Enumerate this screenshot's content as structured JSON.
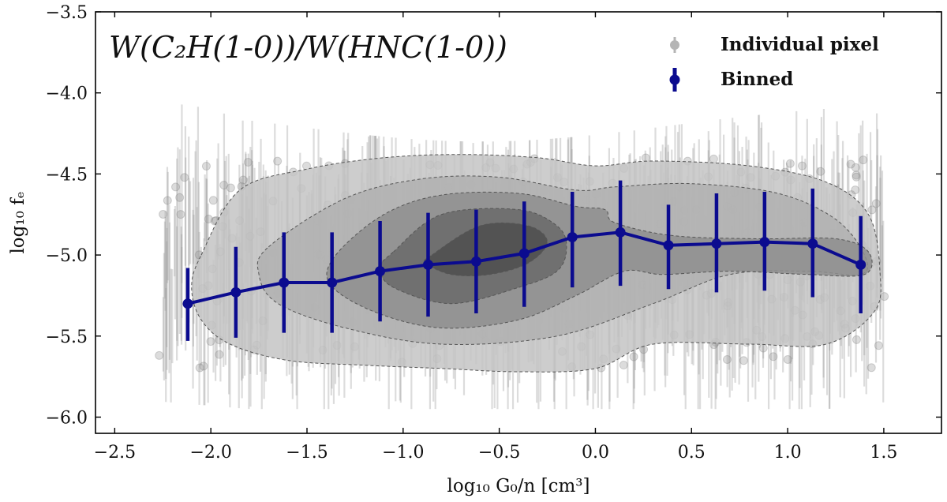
{
  "chart_data": {
    "type": "scatter",
    "title": "W(C₂H(1-0))/W(HNC(1-0))",
    "xlabel": "log₁₀ G₀/n [cm³]",
    "ylabel": "log₁₀ fₑ",
    "xlim": [
      -2.6,
      1.8
    ],
    "ylim": [
      -6.1,
      -3.5
    ],
    "xticks": [
      -2.5,
      -2.0,
      -1.5,
      -1.0,
      -0.5,
      0.0,
      0.5,
      1.0,
      1.5
    ],
    "yticks": [
      -6.0,
      -5.5,
      -5.0,
      -4.5,
      -4.0,
      -3.5
    ],
    "xtick_labels": [
      "−2.5",
      "−2.0",
      "−1.5",
      "−1.0",
      "−0.5",
      "0.0",
      "0.5",
      "1.0",
      "1.5"
    ],
    "ytick_labels": [
      "−6.0",
      "−5.5",
      "−5.0",
      "−4.5",
      "−4.0",
      "−3.5"
    ],
    "legend": {
      "position": "top-right",
      "entries": [
        "Individual pixel",
        "Binned"
      ]
    },
    "series": [
      {
        "name": "Binned",
        "color": "#0b0b8f",
        "x": [
          -2.12,
          -1.87,
          -1.62,
          -1.37,
          -1.12,
          -0.87,
          -0.62,
          -0.37,
          -0.12,
          0.13,
          0.38,
          0.63,
          0.88,
          1.13,
          1.38
        ],
        "y": [
          -5.3,
          -5.23,
          -5.17,
          -5.17,
          -5.1,
          -5.06,
          -5.04,
          -4.99,
          -4.89,
          -4.86,
          -4.94,
          -4.93,
          -4.92,
          -4.93,
          -5.06
        ],
        "y_low": [
          -5.53,
          -5.51,
          -5.48,
          -5.48,
          -5.41,
          -5.38,
          -5.36,
          -5.32,
          -5.2,
          -5.19,
          -5.21,
          -5.23,
          -5.22,
          -5.26,
          -5.36
        ],
        "y_high": [
          -5.08,
          -4.95,
          -4.86,
          -4.86,
          -4.79,
          -4.74,
          -4.72,
          -4.67,
          -4.61,
          -4.54,
          -4.69,
          -4.62,
          -4.61,
          -4.59,
          -4.76
        ]
      }
    ],
    "density_contours": [
      {
        "level": 1,
        "color": "#c4c4c4",
        "x": [
          -2.05,
          -1.85,
          -1.5,
          -1.1,
          -0.7,
          -0.3,
          0.0,
          0.3,
          0.8,
          1.2,
          1.42,
          1.48,
          1.45,
          1.2,
          0.8,
          0.3,
          0.0,
          -0.4,
          -0.8,
          -1.2,
          -1.6,
          -1.9,
          -2.05,
          -2.1
        ],
        "y": [
          -5.0,
          -4.6,
          -4.47,
          -4.4,
          -4.38,
          -4.4,
          -4.45,
          -4.42,
          -4.45,
          -4.55,
          -4.75,
          -5.1,
          -5.35,
          -5.55,
          -5.55,
          -5.55,
          -5.7,
          -5.72,
          -5.7,
          -5.68,
          -5.65,
          -5.55,
          -5.4,
          -5.2
        ]
      },
      {
        "level": 2,
        "color": "#b0b0b0",
        "x": [
          -1.7,
          -1.3,
          -0.9,
          -0.5,
          -0.1,
          0.1,
          0.5,
          0.95,
          1.25,
          1.4,
          1.38,
          1.1,
          0.7,
          0.3,
          -0.2,
          -0.8,
          -1.3,
          -1.65,
          -1.75
        ],
        "y": [
          -4.95,
          -4.65,
          -4.53,
          -4.52,
          -4.6,
          -4.58,
          -4.56,
          -4.62,
          -4.78,
          -5.0,
          -5.12,
          -5.1,
          -5.12,
          -5.3,
          -5.5,
          -5.55,
          -5.45,
          -5.3,
          -5.12
        ]
      },
      {
        "level": 3,
        "color": "#8e8e8e",
        "x": [
          -1.35,
          -1.1,
          -0.8,
          -0.4,
          -0.1,
          0.05,
          0.1,
          0.4,
          0.85,
          1.25,
          1.42,
          1.4,
          1.1,
          0.7,
          0.35,
          0.15,
          -0.1,
          -0.4,
          -0.8,
          -1.15,
          -1.38
        ],
        "y": [
          -5.0,
          -4.75,
          -4.63,
          -4.62,
          -4.7,
          -4.72,
          -4.8,
          -4.88,
          -4.9,
          -4.9,
          -4.98,
          -5.12,
          -5.12,
          -5.1,
          -5.12,
          -5.1,
          -5.25,
          -5.4,
          -5.45,
          -5.35,
          -5.18
        ]
      },
      {
        "level": 4,
        "color": "#6a6a6a",
        "x": [
          -1.05,
          -0.8,
          -0.4,
          -0.2,
          -0.15,
          -0.2,
          -0.4,
          -0.75,
          -1.05,
          -1.12
        ],
        "y": [
          -4.98,
          -4.75,
          -4.72,
          -4.82,
          -4.95,
          -5.1,
          -5.2,
          -5.3,
          -5.2,
          -5.08
        ]
      },
      {
        "level": 5,
        "color": "#4d4d4d",
        "x": [
          -0.85,
          -0.6,
          -0.35,
          -0.25,
          -0.35,
          -0.55,
          -0.75,
          -0.88
        ],
        "y": [
          -5.0,
          -4.82,
          -4.82,
          -4.92,
          -5.05,
          -5.12,
          -5.12,
          -5.05
        ]
      }
    ]
  }
}
